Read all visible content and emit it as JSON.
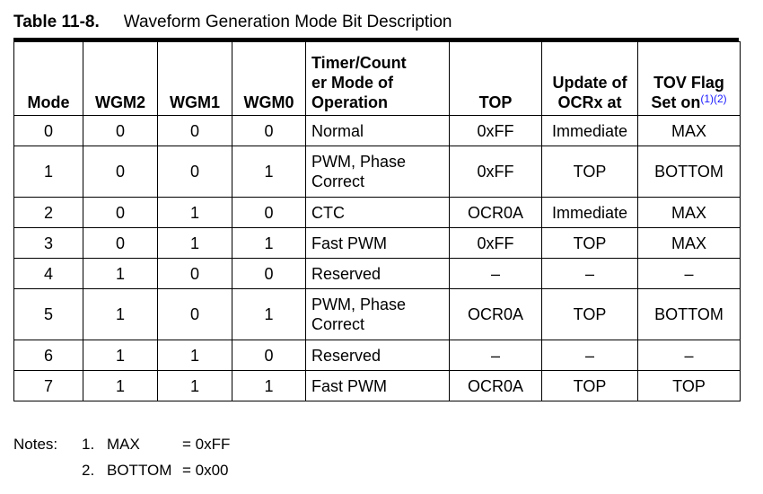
{
  "caption": {
    "number": "Table 11-8.",
    "title": "Waveform Generation Mode Bit Description"
  },
  "table": {
    "headers": {
      "mode": "Mode",
      "wgm2": "WGM2",
      "wgm1": "WGM1",
      "wgm0": "WGM0",
      "operation_line1": "Timer/Count",
      "operation_line2": "er Mode of",
      "operation_line3": "Operation",
      "top": "TOP",
      "update_line1": "Update of",
      "update_line2": "OCRx at",
      "tov_line1": "TOV Flag",
      "tov_line2": "Set on",
      "tov_footnotes": "(1)(2)"
    },
    "rows": [
      {
        "mode": "0",
        "wgm2": "0",
        "wgm1": "0",
        "wgm0": "0",
        "op_line1": "Normal",
        "op_line2": "",
        "top": "0xFF",
        "update": "Immediate",
        "tov": "MAX"
      },
      {
        "mode": "1",
        "wgm2": "0",
        "wgm1": "0",
        "wgm0": "1",
        "op_line1": "PWM, Phase",
        "op_line2": "Correct",
        "top": "0xFF",
        "update": "TOP",
        "tov": "BOTTOM"
      },
      {
        "mode": "2",
        "wgm2": "0",
        "wgm1": "1",
        "wgm0": "0",
        "op_line1": "CTC",
        "op_line2": "",
        "top": "OCR0A",
        "update": "Immediate",
        "tov": "MAX"
      },
      {
        "mode": "3",
        "wgm2": "0",
        "wgm1": "1",
        "wgm0": "1",
        "op_line1": "Fast PWM",
        "op_line2": "",
        "top": "0xFF",
        "update": "TOP",
        "tov": "MAX"
      },
      {
        "mode": "4",
        "wgm2": "1",
        "wgm1": "0",
        "wgm0": "0",
        "op_line1": "Reserved",
        "op_line2": "",
        "top": "–",
        "update": "–",
        "tov": "–"
      },
      {
        "mode": "5",
        "wgm2": "1",
        "wgm1": "0",
        "wgm0": "1",
        "op_line1": "PWM, Phase",
        "op_line2": "Correct",
        "top": "OCR0A",
        "update": "TOP",
        "tov": "BOTTOM"
      },
      {
        "mode": "6",
        "wgm2": "1",
        "wgm1": "1",
        "wgm0": "0",
        "op_line1": "Reserved",
        "op_line2": "",
        "top": "–",
        "update": "–",
        "tov": "–"
      },
      {
        "mode": "7",
        "wgm2": "1",
        "wgm1": "1",
        "wgm0": "1",
        "op_line1": "Fast PWM",
        "op_line2": "",
        "top": "OCR0A",
        "update": "TOP",
        "tov": "TOP"
      }
    ]
  },
  "notes": {
    "label": "Notes:",
    "items": [
      {
        "num": "1.",
        "term": "MAX",
        "value": "= 0xFF"
      },
      {
        "num": "2.",
        "term": "BOTTOM",
        "value": "= 0x00"
      }
    ]
  },
  "colors": {
    "footnote_link": "#1a1aff",
    "rule": "#000000"
  }
}
